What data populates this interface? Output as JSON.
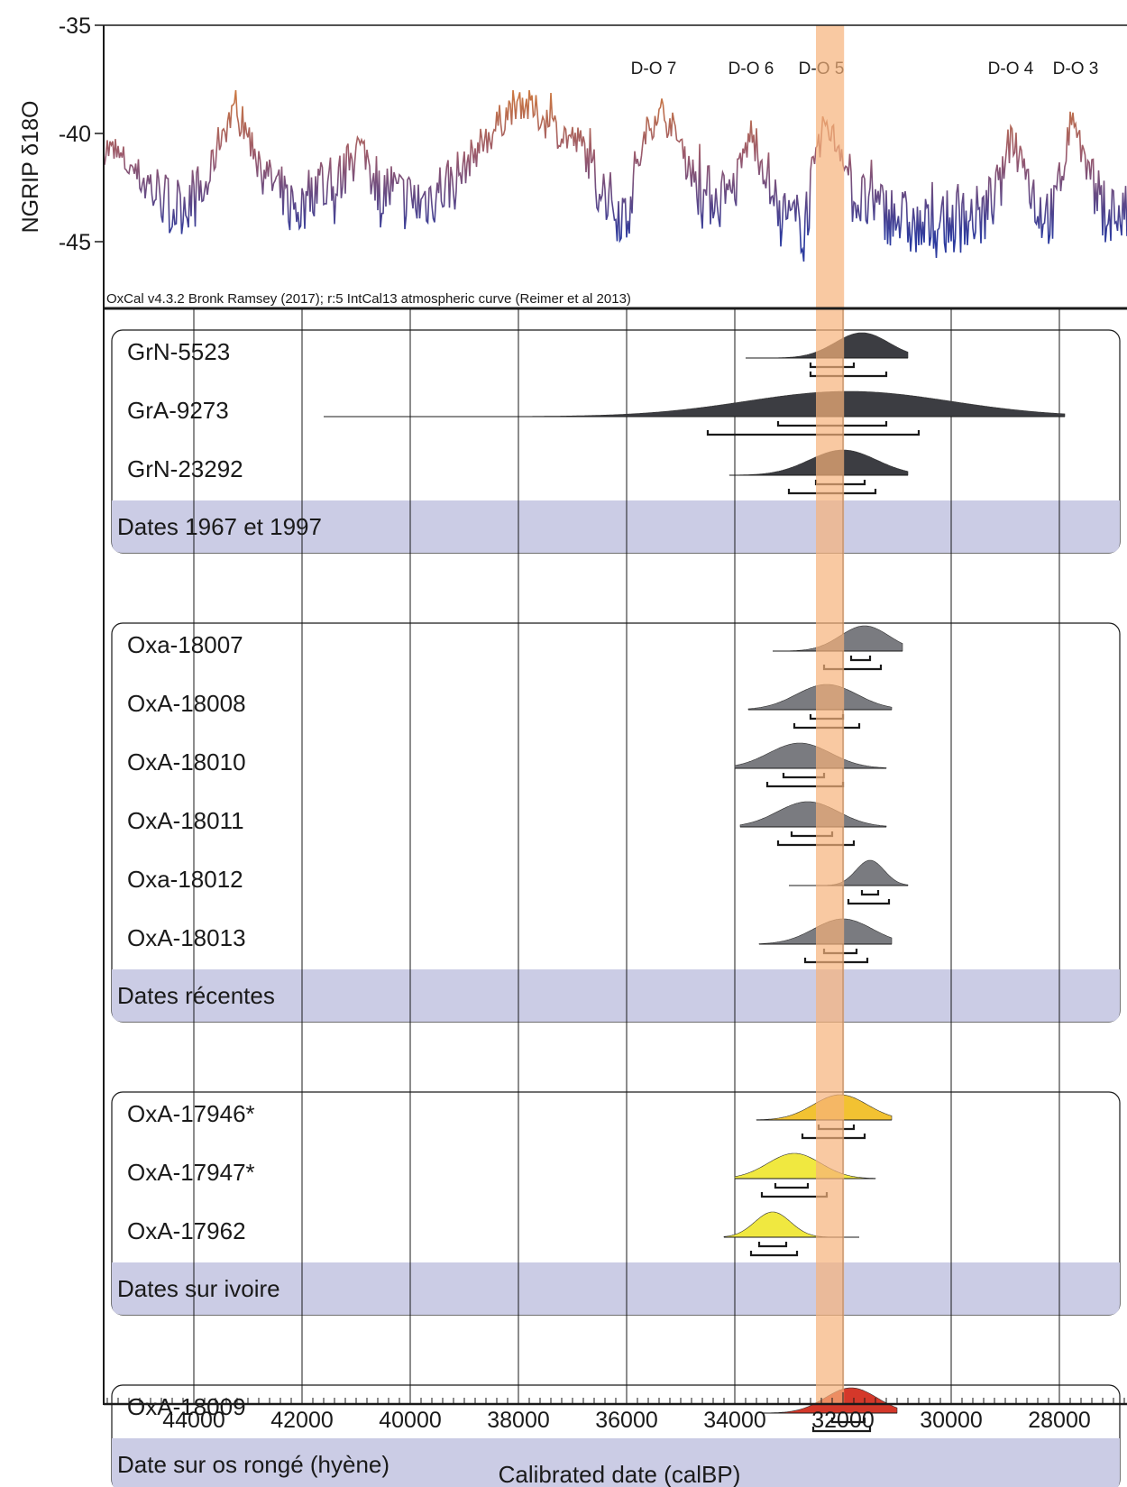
{
  "chart_data": [
    {
      "type": "line",
      "ylabel": "NGRIP δ18O",
      "ylim": [
        -47.5,
        -35
      ],
      "yticks": [
        -35,
        -40,
        -45
      ],
      "x_axis_reversed": true,
      "xlim": [
        45700,
        26700
      ],
      "annotations": [
        {
          "label": "D-O 7",
          "x": 35500
        },
        {
          "label": "D-O 6",
          "x": 33700
        },
        {
          "label": "D-O 5",
          "x": 32400
        },
        {
          "label": "D-O 4",
          "x": 28900
        },
        {
          "label": "D-O 3",
          "x": 27700
        }
      ],
      "series": [
        {
          "x": [
            45700,
            45200,
            44900,
            44400,
            44100,
            43800,
            43500,
            43300,
            43100,
            42900,
            42600,
            42300,
            42000,
            41700,
            41400,
            41200,
            41000,
            40800,
            40600,
            40400,
            40200,
            39800,
            39400,
            39100,
            38800,
            38500,
            38200,
            38000,
            37600,
            37200,
            36800,
            36600,
            36300,
            36000,
            35800,
            35600,
            35400,
            35200,
            34900,
            34600,
            34400,
            34100,
            33900,
            33700,
            33600,
            33400,
            33200,
            32900,
            32700,
            32500,
            32350,
            32200,
            32000,
            31800,
            31400,
            31000,
            30600,
            30200,
            29800,
            29400,
            29100,
            28900,
            28700,
            28400,
            28100,
            27900,
            27750,
            27600,
            27400,
            27200,
            27000,
            26800
          ],
          "values": [
            -40.5,
            -41.5,
            -42.2,
            -43.5,
            -43.0,
            -42.8,
            -40.0,
            -39.2,
            -39.5,
            -40.6,
            -42.0,
            -43.2,
            -43.5,
            -42.0,
            -43.0,
            -41.5,
            -40.5,
            -41.0,
            -43.0,
            -42.5,
            -43.0,
            -43.2,
            -42.5,
            -42.0,
            -40.8,
            -40.0,
            -39.0,
            -38.4,
            -39.2,
            -40.0,
            -40.6,
            -42.0,
            -43.2,
            -43.8,
            -41.5,
            -39.8,
            -38.8,
            -39.6,
            -41.0,
            -43.0,
            -42.8,
            -43.2,
            -41.5,
            -40.0,
            -40.8,
            -42.0,
            -43.8,
            -44.2,
            -44.0,
            -41.5,
            -39.5,
            -40.2,
            -40.8,
            -43.0,
            -43.5,
            -43.8,
            -44.5,
            -44.2,
            -44.0,
            -43.8,
            -42.5,
            -40.0,
            -41.0,
            -43.5,
            -43.8,
            -41.0,
            -39.0,
            -40.6,
            -42.5,
            -43.5,
            -43.6,
            -43.8
          ]
        }
      ],
      "caption": "OxCal v4.3.2 Bronk Ramsey (2017); r:5 IntCal13 atmospheric curve (Reimer et al 2013)"
    },
    {
      "type": "area",
      "xlabel": "Calibrated date (calBP)",
      "x_axis_reversed": true,
      "xlim": [
        45700,
        26700
      ],
      "xticks": [
        44000,
        42000,
        40000,
        38000,
        36000,
        34000,
        32000,
        30000,
        28000
      ],
      "xtick_labels": [
        "44000",
        "42000",
        "40000",
        "38000",
        "36000",
        "34000",
        "32000",
        "30000",
        "28000"
      ],
      "highlight_band": {
        "from": 32500,
        "to": 31980,
        "color": "#f7b27a"
      },
      "grid": true,
      "groups": [
        {
          "label": "Dates 1967 et 1997",
          "dates": [
            {
              "name": "GrN-5523",
              "range": [
                33800,
                30800
              ],
              "mode": 31650,
              "sd": 500,
              "color": "#3c3d42",
              "hpd68": [
                32600,
                31800
              ],
              "hpd95": [
                32600,
                31200
              ]
            },
            {
              "name": "GrA-9273",
              "range": [
                41600,
                27900
              ],
              "mode": 31900,
              "sd": 1900,
              "color": "#3c3d42",
              "hpd68": [
                33200,
                31200
              ],
              "hpd95": [
                34500,
                30600
              ]
            },
            {
              "name": "GrN-23292",
              "range": [
                34100,
                30800
              ],
              "mode": 32000,
              "sd": 620,
              "color": "#3c3d42",
              "hpd68": [
                32500,
                31600
              ],
              "hpd95": [
                33000,
                31400
              ]
            }
          ]
        },
        {
          "label": "Dates récentes",
          "dates": [
            {
              "name": "Oxa-18007",
              "range": [
                33300,
                30900
              ],
              "mode": 31600,
              "sd": 450,
              "color": "#7a7b80",
              "hpd68": [
                31850,
                31500
              ],
              "hpd95": [
                32350,
                31300
              ]
            },
            {
              "name": "OxA-18008",
              "range": [
                33750,
                31100
              ],
              "mode": 32300,
              "sd": 560,
              "color": "#7a7b80",
              "hpd68": [
                32600,
                32000
              ],
              "hpd95": [
                32900,
                31700
              ]
            },
            {
              "name": "OxA-18010",
              "range": [
                34000,
                31200
              ],
              "mode": 32800,
              "sd": 570,
              "color": "#7a7b80",
              "hpd68": [
                33100,
                32350
              ],
              "hpd95": [
                33400,
                32000
              ]
            },
            {
              "name": "OxA-18011",
              "range": [
                33900,
                31200
              ],
              "mode": 32650,
              "sd": 560,
              "color": "#7a7b80",
              "hpd68": [
                32950,
                32200
              ],
              "hpd95": [
                33200,
                31800
              ]
            },
            {
              "name": "Oxa-18012",
              "range": [
                33000,
                30800
              ],
              "mode": 31500,
              "sd": 260,
              "color": "#7a7b80",
              "hpd68": [
                31650,
                31350
              ],
              "hpd95": [
                31900,
                31150
              ]
            },
            {
              "name": "OxA-18013",
              "range": [
                33550,
                31100
              ],
              "mode": 32000,
              "sd": 540,
              "color": "#7a7b80",
              "hpd68": [
                32350,
                31750
              ],
              "hpd95": [
                32700,
                31550
              ]
            }
          ]
        },
        {
          "label": "Dates sur ivoire",
          "dates": [
            {
              "name": "OxA-17946*",
              "range": [
                33600,
                31100
              ],
              "mode": 32050,
              "sd": 500,
              "color": "#f2c232",
              "hpd68": [
                32450,
                31800
              ],
              "hpd95": [
                32750,
                31600
              ]
            },
            {
              "name": "OxA-17947*",
              "range": [
                34000,
                31400
              ],
              "mode": 32900,
              "sd": 490,
              "color": "#f0e840",
              "hpd68": [
                33250,
                32650
              ],
              "hpd95": [
                33500,
                32300
              ]
            },
            {
              "name": "OxA-17962",
              "range": [
                34200,
                31700
              ],
              "mode": 33300,
              "sd": 330,
              "color": "#f0e840",
              "hpd68": [
                33550,
                33050
              ],
              "hpd95": [
                33700,
                32850
              ]
            }
          ]
        },
        {
          "label": "Date sur os rongé (hyène)",
          "dates": [
            {
              "name": "OxA-18009",
              "range": [
                33500,
                31000
              ],
              "mode": 31850,
              "sd": 480,
              "color": "#d4382a",
              "hpd68": [
                32200,
                31600
              ],
              "hpd95": [
                32550,
                31500
              ]
            }
          ]
        }
      ]
    }
  ]
}
